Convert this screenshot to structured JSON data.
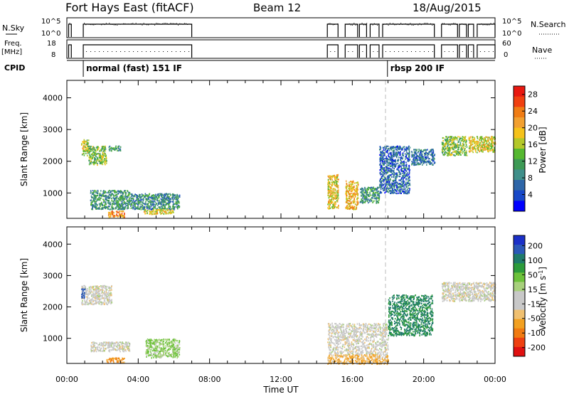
{
  "header": {
    "station": "Fort Hays East (fitACF)",
    "beam": "Beam 12",
    "date": "18/Aug/2015"
  },
  "strips": {
    "nsky_label": "N.Sky",
    "nsky_ticks": [
      "10^5",
      "10^0"
    ],
    "nsearch_label": "N.Search",
    "nsearch_ticks": [
      "10^5",
      "10^0"
    ],
    "freq_label": "Freq.",
    "freq_unit": "[MHz]",
    "freq_ticks": [
      "18",
      "8"
    ],
    "nave_label": "Nave",
    "nave_ticks": [
      "60",
      "0"
    ],
    "cpid_label": "CPID",
    "cpid_modes": [
      {
        "text": "normal (fast) 151 IF",
        "start_hour": 0.92
      },
      {
        "text": "rbsp 200 IF",
        "start_hour": 17.97
      }
    ]
  },
  "colorbars": {
    "power": {
      "label": "Power [dB]",
      "ticks": [
        "4",
        "8",
        "12",
        "16",
        "20",
        "24",
        "28"
      ],
      "colors": [
        "#0000ff",
        "#1848c8",
        "#2e66a8",
        "#3f8f8a",
        "#3d9a55",
        "#55b830",
        "#b4c829",
        "#f5c21b",
        "#f2a030",
        "#f07c14",
        "#f04010",
        "#e81810"
      ]
    },
    "velocity": {
      "label": "Velocity [m s",
      "label_sup": "-1",
      "label_end": "]",
      "ticks": [
        "200",
        "100",
        "50",
        "15",
        "-15",
        "-50",
        "-100",
        "-200"
      ],
      "colors": [
        "#1b30c8",
        "#2b58b8",
        "#1f7a6a",
        "#2c9b3a",
        "#6cc23a",
        "#a8d07c",
        "#c8c8c8",
        "#c8c8c8",
        "#f0c070",
        "#f2a020",
        "#f07a10",
        "#ee4010",
        "#e01010"
      ]
    }
  },
  "chart_data": [
    {
      "type": "heatmap",
      "name": "power",
      "ylabel": "Slant Range [km]",
      "xlabel": "Time UT",
      "xlim": [
        0,
        24
      ],
      "ylim": [
        200,
        4550
      ],
      "xticks": [
        "00:00",
        "04:00",
        "08:00",
        "12:00",
        "16:00",
        "20:00",
        "00:00"
      ],
      "yticks": [
        "1000",
        "2000",
        "3000",
        "4000"
      ],
      "scale_db": [
        0,
        30
      ],
      "regions": [
        {
          "t": [
            0.8,
            1.2
          ],
          "r": [
            2200,
            2700
          ],
          "v": 16
        },
        {
          "t": [
            1.2,
            2.2
          ],
          "r": [
            1900,
            2500
          ],
          "v": 14
        },
        {
          "t": [
            2.3,
            3.0
          ],
          "r": [
            2350,
            2500
          ],
          "v": 10
        },
        {
          "t": [
            1.3,
            3.5
          ],
          "r": [
            500,
            1100
          ],
          "v": 10
        },
        {
          "t": [
            3.5,
            6.3
          ],
          "r": [
            500,
            1000
          ],
          "v": 9
        },
        {
          "t": [
            2.3,
            3.2
          ],
          "r": [
            250,
            450
          ],
          "v": 22
        },
        {
          "t": [
            4.3,
            6.0
          ],
          "r": [
            350,
            500
          ],
          "v": 18
        },
        {
          "t": [
            14.6,
            15.2
          ],
          "r": [
            500,
            1600
          ],
          "v": 18
        },
        {
          "t": [
            15.6,
            16.3
          ],
          "r": [
            500,
            1400
          ],
          "v": 20
        },
        {
          "t": [
            16.4,
            17.5
          ],
          "r": [
            700,
            1200
          ],
          "v": 10
        },
        {
          "t": [
            17.5,
            19.2
          ],
          "r": [
            1000,
            2500
          ],
          "v": 6
        },
        {
          "t": [
            19.3,
            20.6
          ],
          "r": [
            1900,
            2400
          ],
          "v": 7
        },
        {
          "t": [
            21.0,
            22.4
          ],
          "r": [
            2200,
            2800
          ],
          "v": 14
        },
        {
          "t": [
            22.5,
            24.0
          ],
          "r": [
            2300,
            2800
          ],
          "v": 18
        }
      ]
    },
    {
      "type": "heatmap",
      "name": "velocity",
      "ylabel": "Slant Range [km]",
      "xlabel": "Time UT",
      "xlim": [
        0,
        24
      ],
      "ylim": [
        200,
        4550
      ],
      "xticks": [
        "00:00",
        "04:00",
        "08:00",
        "12:00",
        "16:00",
        "20:00",
        "00:00"
      ],
      "yticks": [
        "1000",
        "2000",
        "3000",
        "4000"
      ],
      "regions": [
        {
          "t": [
            0.8,
            2.5
          ],
          "r": [
            2100,
            2700
          ],
          "v": 0
        },
        {
          "t": [
            0.8,
            1.0
          ],
          "r": [
            2300,
            2600
          ],
          "v": 150
        },
        {
          "t": [
            1.3,
            3.5
          ],
          "r": [
            600,
            900
          ],
          "v": 0
        },
        {
          "t": [
            2.2,
            3.2
          ],
          "r": [
            250,
            400
          ],
          "v": -40
        },
        {
          "t": [
            4.4,
            6.3
          ],
          "r": [
            400,
            1000
          ],
          "v": 30
        },
        {
          "t": [
            14.6,
            18.0
          ],
          "r": [
            500,
            1500
          ],
          "v": 0
        },
        {
          "t": [
            14.6,
            18.0
          ],
          "r": [
            200,
            500
          ],
          "v": -30
        },
        {
          "t": [
            18.0,
            20.5
          ],
          "r": [
            1100,
            2400
          ],
          "v": 80
        },
        {
          "t": [
            21.0,
            24.0
          ],
          "r": [
            2200,
            2800
          ],
          "v": 0
        }
      ]
    }
  ]
}
